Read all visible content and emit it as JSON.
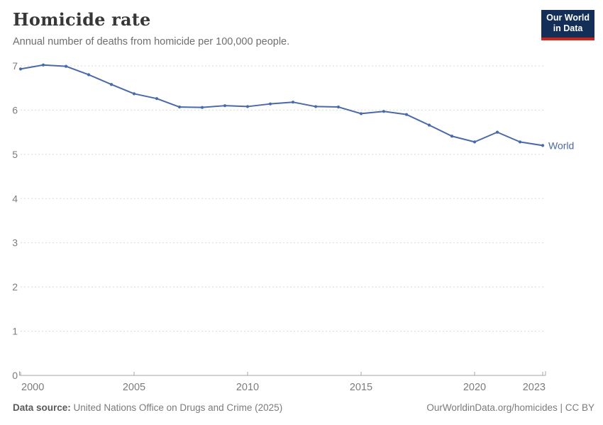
{
  "header": {
    "title": "Homicide rate",
    "subtitle": "Annual number of deaths from homicide per 100,000 people.",
    "logo": {
      "line1": "Our World",
      "line2": "in Data"
    }
  },
  "chart_data": {
    "type": "line",
    "title": "Homicide rate",
    "subtitle": "Annual number of deaths from homicide per 100,000 people.",
    "x": [
      2000,
      2001,
      2002,
      2003,
      2004,
      2005,
      2006,
      2007,
      2008,
      2009,
      2010,
      2011,
      2012,
      2013,
      2014,
      2015,
      2016,
      2017,
      2018,
      2019,
      2020,
      2021,
      2022,
      2023
    ],
    "series": [
      {
        "name": "World",
        "color": "#4a69a8",
        "values": [
          6.93,
          7.02,
          6.99,
          6.8,
          6.58,
          6.37,
          6.26,
          6.07,
          6.06,
          6.1,
          6.08,
          6.14,
          6.18,
          6.08,
          6.07,
          5.92,
          5.97,
          5.9,
          5.66,
          5.41,
          5.28,
          5.5,
          5.28,
          5.2
        ]
      }
    ],
    "xlim": [
      2000,
      2023
    ],
    "ylim": [
      0,
      7
    ],
    "x_ticks": [
      2000,
      2005,
      2010,
      2015,
      2020,
      2023
    ],
    "y_ticks": [
      0,
      1,
      2,
      3,
      4,
      5,
      6,
      7
    ],
    "grid": "horizontal-dashed",
    "legend": "end-of-line-label",
    "end_label": "World"
  },
  "footer": {
    "source_label": "Data source:",
    "source_text": "United Nations Office on Drugs and Crime (2025)",
    "credit": "OurWorldinData.org/homicides | CC BY"
  },
  "colors": {
    "line": "#4a69a8",
    "title": "#373737",
    "subtitle": "#6e6e6e",
    "axis_text": "#7c7c7c",
    "gridline": "#d9d9d9",
    "axis_line": "#a5a5a5",
    "logo_bg": "#132f57",
    "logo_accent": "#cd2419",
    "footer_text": "#7b7b7b",
    "footer_bold": "#5a5a5a"
  }
}
